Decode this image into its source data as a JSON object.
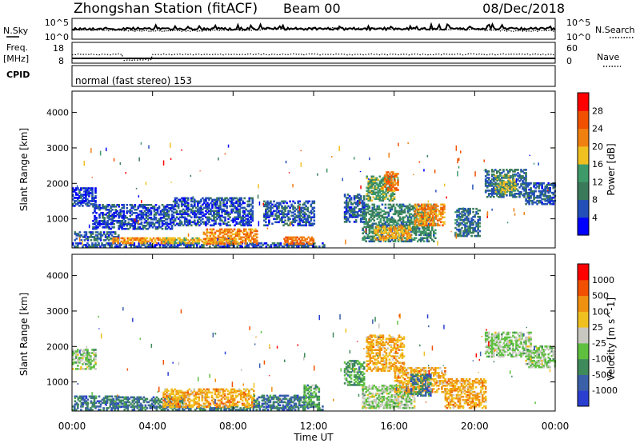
{
  "header": {
    "station": "Zhongshan Station (fitACF)",
    "beam": "Beam 00",
    "date": "08/Dec/2018"
  },
  "top_panels": {
    "nsky_label": "N.Sky",
    "nsearch_label": "N.Search",
    "noise_ticks_left": [
      "10^5",
      "10^0"
    ],
    "noise_ticks_right": [
      "10^5",
      "10^0"
    ],
    "freq_label": "Freq.",
    "freq_unit": "[MHz]",
    "freq_ticks": [
      "18",
      "8"
    ],
    "nave_label": "Nave",
    "nave_ticks": [
      "60",
      "0"
    ],
    "cpid_label": "CPID",
    "cpid_text": "normal (fast stereo) 153"
  },
  "colors": {
    "power": [
      "#0000ff",
      "#224fb8",
      "#3a7a5a",
      "#3f9a6a",
      "#f0c020",
      "#f08010",
      "#f05000",
      "#ff0000"
    ],
    "velocity": [
      "#2a3fd0",
      "#3a60a8",
      "#3f8a5a",
      "#5fc040",
      "#c8c8c0",
      "#f0c020",
      "#f09010",
      "#f05000",
      "#ff0000"
    ]
  },
  "chart_data": [
    {
      "type": "heatmap",
      "name": "power",
      "ylabel": "Slant Range [km]",
      "ylim": [
        180,
        4600
      ],
      "yticks": [
        "4000",
        "3000",
        "2000",
        "1000"
      ],
      "xlim": [
        0,
        24
      ],
      "colorbar_label": "Power [dB]",
      "colorbar_ticks": [
        "28",
        "24",
        "20",
        "16",
        "12",
        "8",
        "4"
      ],
      "blobs": [
        {
          "t0": 0.0,
          "t1": 1.2,
          "r0": 1350,
          "r1": 1850,
          "v": 5
        },
        {
          "t0": 0.1,
          "t1": 2.3,
          "r0": 380,
          "r1": 620,
          "v": 7
        },
        {
          "t0": 0.0,
          "t1": 12.5,
          "r0": 200,
          "r1": 330,
          "v": 6
        },
        {
          "t0": 2.0,
          "t1": 5.0,
          "r0": 300,
          "r1": 480,
          "v": 21
        },
        {
          "t0": 4.5,
          "t1": 8.0,
          "r0": 300,
          "r1": 480,
          "v": 18
        },
        {
          "t0": 6.5,
          "t1": 9.2,
          "r0": 280,
          "r1": 700,
          "v": 22
        },
        {
          "t0": 10.5,
          "t1": 12.0,
          "r0": 280,
          "r1": 500,
          "v": 24
        },
        {
          "t0": 1.0,
          "t1": 5.0,
          "r0": 700,
          "r1": 1400,
          "v": 6
        },
        {
          "t0": 5.0,
          "t1": 9.0,
          "r0": 800,
          "r1": 1600,
          "v": 6
        },
        {
          "t0": 9.5,
          "t1": 12.0,
          "r0": 800,
          "r1": 1500,
          "v": 7
        },
        {
          "t0": 14.6,
          "t1": 16.0,
          "r0": 1500,
          "r1": 2200,
          "v": 14
        },
        {
          "t0": 15.5,
          "t1": 16.2,
          "r0": 1800,
          "r1": 2300,
          "v": 23
        },
        {
          "t0": 14.4,
          "t1": 18.0,
          "r0": 350,
          "r1": 1400,
          "v": 11
        },
        {
          "t0": 17.0,
          "t1": 18.5,
          "r0": 800,
          "r1": 1400,
          "v": 22
        },
        {
          "t0": 15.0,
          "t1": 16.8,
          "r0": 400,
          "r1": 800,
          "v": 20
        },
        {
          "t0": 19.0,
          "t1": 20.2,
          "r0": 500,
          "r1": 1300,
          "v": 9
        },
        {
          "t0": 20.5,
          "t1": 22.5,
          "r0": 1600,
          "r1": 2400,
          "v": 8
        },
        {
          "t0": 21.0,
          "t1": 22.0,
          "r0": 1700,
          "r1": 2200,
          "v": 15
        },
        {
          "t0": 22.5,
          "t1": 24.0,
          "r0": 1400,
          "r1": 2000,
          "v": 7
        },
        {
          "t0": 13.5,
          "t1": 14.5,
          "r0": 900,
          "r1": 1700,
          "v": 7
        }
      ]
    },
    {
      "type": "heatmap",
      "name": "velocity",
      "ylabel": "Slant Range [km]",
      "ylim": [
        180,
        4600
      ],
      "yticks": [
        "4000",
        "3000",
        "2000",
        "1000"
      ],
      "xlim": [
        0,
        24
      ],
      "xlabel": "Time UT",
      "xticks": [
        "00:00",
        "04:00",
        "08:00",
        "12:00",
        "16:00",
        "20:00",
        "00:00"
      ],
      "colorbar_label": "Velocity [m s^-1]",
      "colorbar_ticks": [
        "1000",
        "500",
        "100",
        "25",
        "-25",
        "-100",
        "-500",
        "-1000"
      ],
      "blobs": [
        {
          "t0": 0.0,
          "t1": 1.2,
          "r0": 1350,
          "r1": 1900,
          "v": 4
        },
        {
          "t0": 0.1,
          "t1": 2.3,
          "r0": 350,
          "r1": 600,
          "v": 2
        },
        {
          "t0": 0.0,
          "t1": 12.5,
          "r0": 200,
          "r1": 330,
          "v": 2
        },
        {
          "t0": 2.0,
          "t1": 5.5,
          "r0": 280,
          "r1": 560,
          "v": 2
        },
        {
          "t0": 4.5,
          "t1": 9.0,
          "r0": 280,
          "r1": 800,
          "v": 6
        },
        {
          "t0": 9.0,
          "t1": 12.0,
          "r0": 280,
          "r1": 600,
          "v": 2
        },
        {
          "t0": 11.5,
          "t1": 12.3,
          "r0": 300,
          "r1": 900,
          "v": 3
        },
        {
          "t0": 14.6,
          "t1": 16.5,
          "r0": 1300,
          "r1": 2300,
          "v": 6
        },
        {
          "t0": 14.4,
          "t1": 17.0,
          "r0": 250,
          "r1": 900,
          "v": 4
        },
        {
          "t0": 16.0,
          "t1": 18.5,
          "r0": 700,
          "r1": 1400,
          "v": 6
        },
        {
          "t0": 16.8,
          "t1": 17.8,
          "r0": 600,
          "r1": 1200,
          "v": 2
        },
        {
          "t0": 18.5,
          "t1": 20.5,
          "r0": 250,
          "r1": 1100,
          "v": 6
        },
        {
          "t0": 20.5,
          "t1": 22.8,
          "r0": 1700,
          "r1": 2400,
          "v": 4
        },
        {
          "t0": 22.5,
          "t1": 24.0,
          "r0": 1400,
          "r1": 2000,
          "v": 4
        },
        {
          "t0": 13.5,
          "t1": 14.5,
          "r0": 900,
          "r1": 1600,
          "v": 3
        }
      ]
    }
  ]
}
